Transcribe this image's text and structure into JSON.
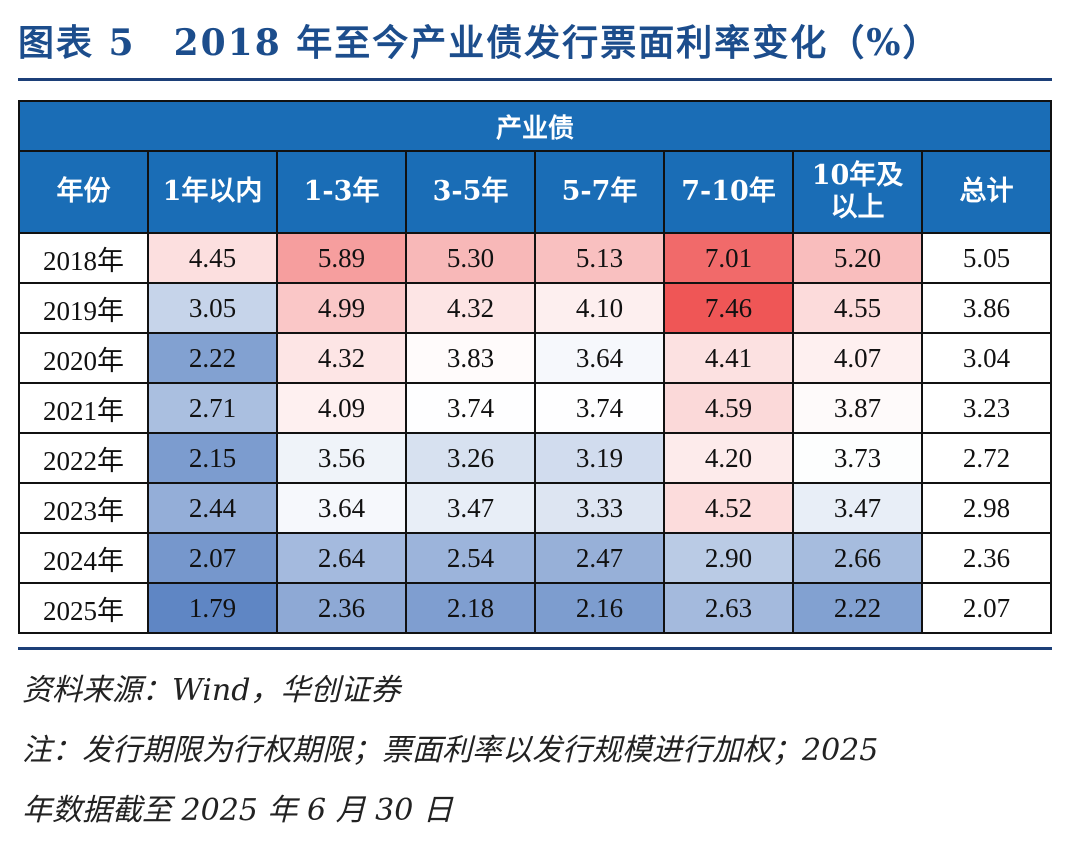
{
  "title": "图表 5　2018 年至今产业债发行票面利率变化（%）",
  "chart_data": {
    "type": "table",
    "title": "图表 5　2018 年至今产业债发行票面利率变化（%）",
    "group_header": "产业债",
    "columns": [
      "年份",
      "1年以内",
      "1-3年",
      "3-5年",
      "5-7年",
      "7-10年",
      "10年及以上",
      "总计"
    ],
    "rows": [
      {
        "year": "2018年",
        "values": [
          "4.45",
          "5.89",
          "5.30",
          "5.13",
          "7.01",
          "5.20",
          "5.05"
        ]
      },
      {
        "year": "2019年",
        "values": [
          "3.05",
          "4.99",
          "4.32",
          "4.10",
          "7.46",
          "4.55",
          "3.86"
        ]
      },
      {
        "year": "2020年",
        "values": [
          "2.22",
          "4.32",
          "3.83",
          "3.64",
          "4.41",
          "4.07",
          "3.04"
        ]
      },
      {
        "year": "2021年",
        "values": [
          "2.71",
          "4.09",
          "3.74",
          "3.74",
          "4.59",
          "3.87",
          "3.23"
        ]
      },
      {
        "year": "2022年",
        "values": [
          "2.15",
          "3.56",
          "3.26",
          "3.19",
          "4.20",
          "3.73",
          "2.72"
        ]
      },
      {
        "year": "2023年",
        "values": [
          "2.44",
          "3.64",
          "3.47",
          "3.33",
          "4.52",
          "3.47",
          "2.98"
        ]
      },
      {
        "year": "2024年",
        "values": [
          "2.07",
          "2.64",
          "2.54",
          "2.47",
          "2.90",
          "2.66",
          "2.36"
        ]
      },
      {
        "year": "2025年",
        "values": [
          "1.79",
          "2.36",
          "2.18",
          "2.16",
          "2.63",
          "2.22",
          "2.07"
        ]
      }
    ],
    "heatmap_colors": {
      "low": "#5f86c4",
      "mid": "#ffffff",
      "high": "#ef5656"
    },
    "header_color": "#1a6db6"
  },
  "notes": {
    "source": "资料来源：Wind，华创证券",
    "note1": "注：发行期限为行权期限；票面利率以发行规模进行加权；2025",
    "note2": "年数据截至 2025 年 6 月 30 日"
  }
}
